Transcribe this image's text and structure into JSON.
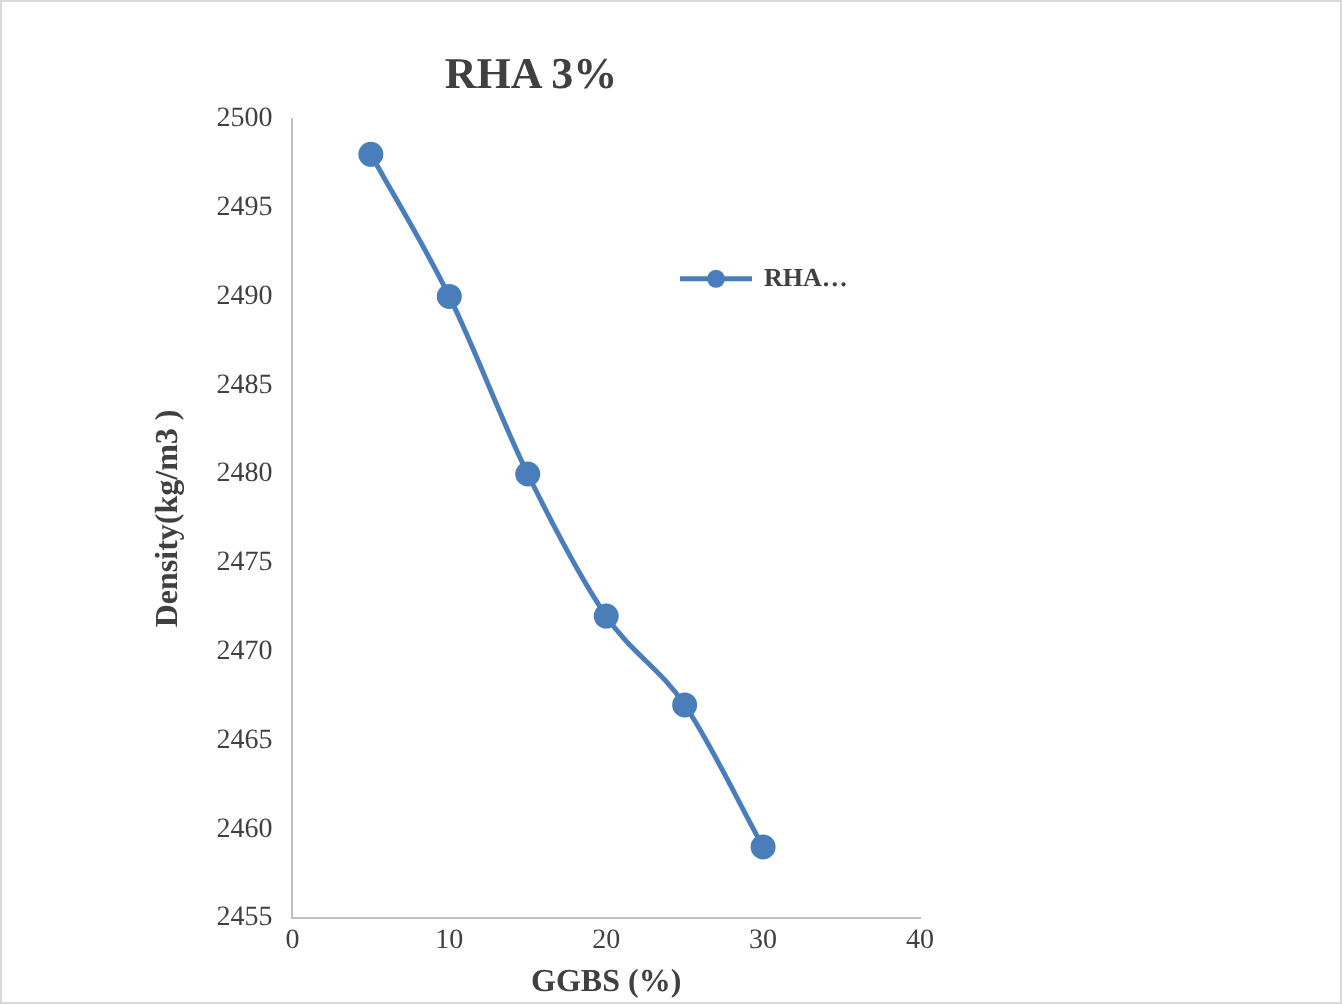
{
  "chart_data": {
    "type": "line",
    "title": "RHA 3%",
    "xlabel": "GGBS (%)",
    "ylabel": "Density(kg/m3 )",
    "x": [
      5,
      10,
      15,
      20,
      25,
      30
    ],
    "series": [
      {
        "name": "RHA…",
        "color": "#4a7ebb",
        "values": [
          2498,
          2490,
          2480,
          2472,
          2467,
          2459
        ]
      }
    ],
    "xlim": [
      0,
      40
    ],
    "xticks": [
      0,
      10,
      20,
      30,
      40
    ],
    "ylim": [
      2455,
      2500
    ],
    "yticks": [
      2455,
      2460,
      2465,
      2470,
      2475,
      2480,
      2485,
      2490,
      2495,
      2500
    ],
    "grid": false,
    "legend": "top right",
    "marker": "circle",
    "line_style": "solid"
  }
}
